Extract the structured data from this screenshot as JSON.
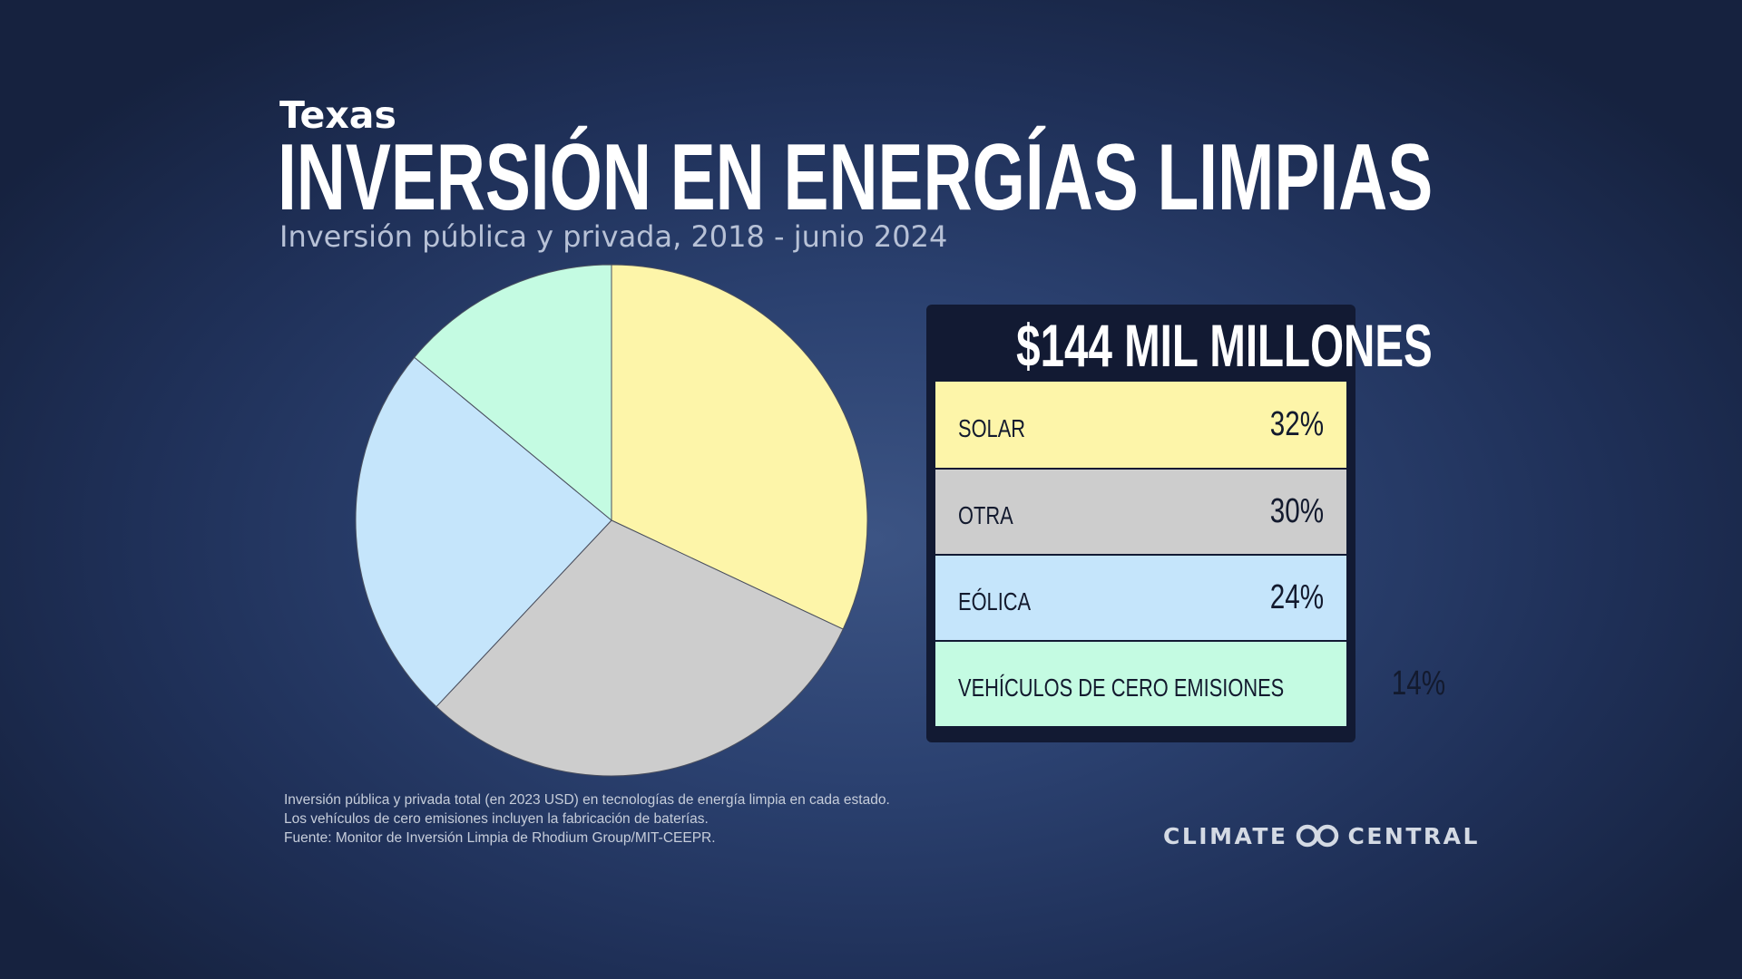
{
  "header": {
    "state": "Texas",
    "title": "INVERSIÓN EN ENERGÍAS LIMPIAS",
    "subtitle": "Inversión pública y privada, 2018 - junio 2024"
  },
  "panel": {
    "total": "$144 MIL MILLONES"
  },
  "chart_data": {
    "type": "pie",
    "categories": [
      "SOLAR",
      "OTRA",
      "EÓLICA",
      "VEHÍCULOS DE CERO EMISIONES"
    ],
    "values": [
      32,
      30,
      24,
      14
    ],
    "labels": [
      "32%",
      "30%",
      "24%",
      "14%"
    ],
    "colors": [
      "#fdf5a9",
      "#cdcdcd",
      "#c5e5fb",
      "#c4fbe2"
    ],
    "start_angle_deg": 0,
    "direction": "clockwise",
    "slice_border_color": "#4a4f5e"
  },
  "footnotes": [
    "Inversión pública y privada total (en 2023 USD) en tecnologías de energía limpia en cada estado.",
    "Los vehículos de cero emisiones incluyen la fabricación de baterías.",
    "Fuente: Monitor de Inversión Limpia de Rhodium Group/MIT-CEEPR."
  ],
  "logo": {
    "left": "CLIMATE",
    "right": "CENTRAL",
    "icon": "climate-central-logo-icon"
  }
}
